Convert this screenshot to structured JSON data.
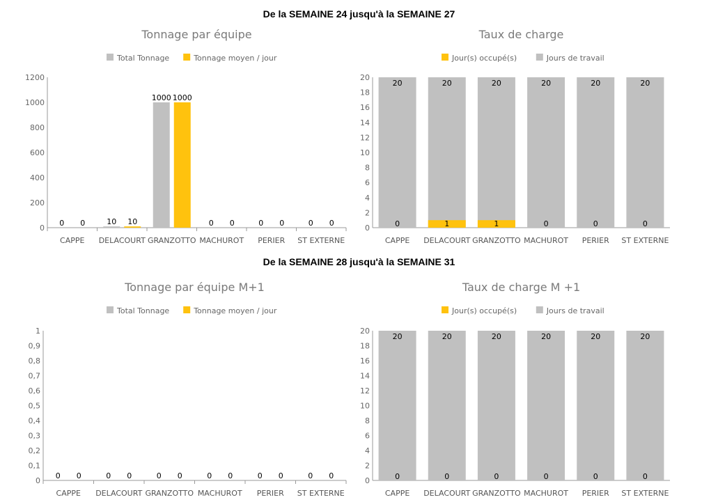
{
  "sections": [
    {
      "title": "De la SEMAINE 24 jusqu'à la SEMAINE 27"
    },
    {
      "title": "De la SEMAINE 28 jusqu'à la SEMAINE 31"
    }
  ],
  "colors": {
    "gray": "#c0c0c0",
    "yellow": "#ffc20e",
    "axis": "#999999"
  },
  "chart_data": [
    {
      "id": "tonnage-1",
      "type": "bar",
      "title": "Tonnage par équipe",
      "legend": "top",
      "categories": [
        "CAPPE",
        "DELACOURT",
        "GRANZOTTO",
        "MACHUROT",
        "PERIER",
        "ST EXTERNE"
      ],
      "series": [
        {
          "name": "Total Tonnage",
          "color": "#c0c0c0",
          "values": [
            0,
            10,
            1000,
            0,
            0,
            0
          ]
        },
        {
          "name": "Tonnage moyen / jour",
          "color": "#ffc20e",
          "values": [
            0,
            10,
            1000,
            0,
            0,
            0
          ]
        }
      ],
      "ylim": [
        0,
        1200
      ],
      "yticks": [
        "0",
        "200",
        "400",
        "600",
        "800",
        "1000",
        "1200"
      ]
    },
    {
      "id": "charge-1",
      "type": "bar",
      "stacked": true,
      "title": "Taux de charge",
      "legend": "top",
      "categories": [
        "CAPPE",
        "DELACOURT",
        "GRANZOTTO",
        "MACHUROT",
        "PERIER",
        "ST EXTERNE"
      ],
      "series": [
        {
          "name": "Jour(s) occupé(s)",
          "color": "#ffc20e",
          "values": [
            0,
            1,
            1,
            0,
            0,
            0
          ]
        },
        {
          "name": "Jours de travail",
          "color": "#c0c0c0",
          "values": [
            20,
            20,
            20,
            20,
            20,
            20
          ]
        }
      ],
      "ylim": [
        0,
        20
      ],
      "yticks": [
        "0",
        "2",
        "4",
        "6",
        "8",
        "10",
        "12",
        "14",
        "16",
        "18",
        "20"
      ]
    },
    {
      "id": "tonnage-2",
      "type": "bar",
      "title": "Tonnage par équipe M+1",
      "legend": "top",
      "categories": [
        "CAPPE",
        "DELACOURT",
        "GRANZOTTO",
        "MACHUROT",
        "PERIER",
        "ST EXTERNE"
      ],
      "series": [
        {
          "name": "Total Tonnage",
          "color": "#c0c0c0",
          "values": [
            0,
            0,
            0,
            0,
            0,
            0
          ]
        },
        {
          "name": "Tonnage moyen / jour",
          "color": "#ffc20e",
          "values": [
            0,
            0,
            0,
            0,
            0,
            0
          ]
        }
      ],
      "ylim": [
        0,
        1
      ],
      "yticks": [
        "0",
        "0,1",
        "0,2",
        "0,3",
        "0,4",
        "0,5",
        "0,6",
        "0,7",
        "0,8",
        "0,9",
        "1"
      ]
    },
    {
      "id": "charge-2",
      "type": "bar",
      "stacked": true,
      "title": "Taux de charge M +1",
      "legend": "top",
      "categories": [
        "CAPPE",
        "DELACOURT",
        "GRANZOTTO",
        "MACHUROT",
        "PERIER",
        "ST EXTERNE"
      ],
      "series": [
        {
          "name": "Jour(s) occupé(s)",
          "color": "#ffc20e",
          "values": [
            0,
            0,
            0,
            0,
            0,
            0
          ]
        },
        {
          "name": "Jours de travail",
          "color": "#c0c0c0",
          "values": [
            20,
            20,
            20,
            20,
            20,
            20
          ]
        }
      ],
      "ylim": [
        0,
        20
      ],
      "yticks": [
        "0",
        "2",
        "4",
        "6",
        "8",
        "10",
        "12",
        "14",
        "16",
        "18",
        "20"
      ]
    }
  ]
}
